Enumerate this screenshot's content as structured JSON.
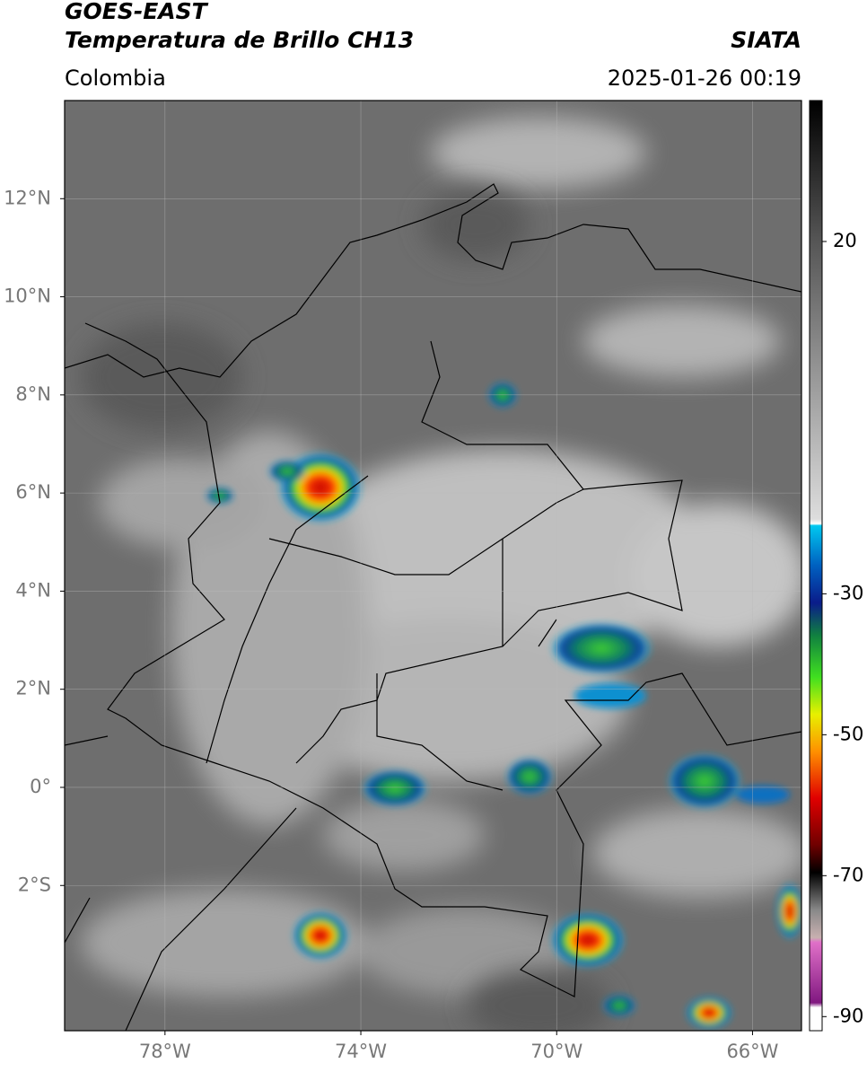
{
  "header": {
    "title": "GOES-EAST",
    "subtitle": "Temperatura de Brillo CH13",
    "source": "SIATA",
    "region": "Colombia",
    "timestamp": "2025-01-26 00:19"
  },
  "map": {
    "lon_lim": [
      -80.05,
      -65.0
    ],
    "lat_lim": [
      -4.96,
      14.0
    ],
    "lon_ticks": [
      {
        "value": -78,
        "label": "78°W"
      },
      {
        "value": -74,
        "label": "74°W"
      },
      {
        "value": -70,
        "label": "70°W"
      },
      {
        "value": -66,
        "label": "66°W"
      }
    ],
    "lat_ticks": [
      {
        "value": 12,
        "label": "12°N"
      },
      {
        "value": 10,
        "label": "10°N"
      },
      {
        "value": 8,
        "label": "8°N"
      },
      {
        "value": 6,
        "label": "6°N"
      },
      {
        "value": 4,
        "label": "4°N"
      },
      {
        "value": 2,
        "label": "2°N"
      },
      {
        "value": 0,
        "label": "0°"
      },
      {
        "value": -2,
        "label": "2°S"
      }
    ]
  },
  "colorbar": {
    "lim": [
      -92,
      40
    ],
    "ticks": [
      20,
      -30,
      -50,
      -70,
      -90
    ]
  }
}
